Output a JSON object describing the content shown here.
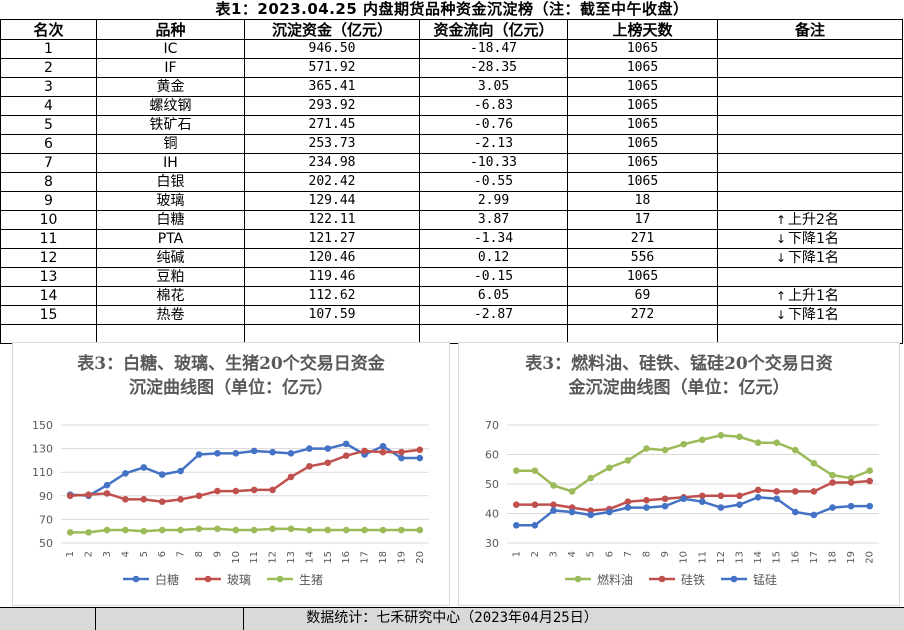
{
  "title": "表1：2023.04.25 内盘期货品种资金沉淀榜（注：截至中午收盘）",
  "table": {
    "headers": [
      "名次",
      "品种",
      "沉淀资金（亿元）",
      "资金流向（亿元）",
      "上榜天数",
      "备注"
    ],
    "rows": [
      {
        "rank": "1",
        "name": "IC",
        "amount": "946.50",
        "flow": "-18.47",
        "days": "1065",
        "note": "",
        "arrow": ""
      },
      {
        "rank": "2",
        "name": "IF",
        "amount": "571.92",
        "flow": "-28.35",
        "days": "1065",
        "note": "",
        "arrow": ""
      },
      {
        "rank": "3",
        "name": "黄金",
        "amount": "365.41",
        "flow": "3.05",
        "days": "1065",
        "note": "",
        "arrow": ""
      },
      {
        "rank": "4",
        "name": "螺纹钢",
        "amount": "293.92",
        "flow": "-6.83",
        "days": "1065",
        "note": "",
        "arrow": ""
      },
      {
        "rank": "5",
        "name": "铁矿石",
        "amount": "271.45",
        "flow": "-0.76",
        "days": "1065",
        "note": "",
        "arrow": ""
      },
      {
        "rank": "6",
        "name": "铜",
        "amount": "253.73",
        "flow": "-2.13",
        "days": "1065",
        "note": "",
        "arrow": ""
      },
      {
        "rank": "7",
        "name": "IH",
        "amount": "234.98",
        "flow": "-10.33",
        "days": "1065",
        "note": "",
        "arrow": ""
      },
      {
        "rank": "8",
        "name": "白银",
        "amount": "202.42",
        "flow": "-0.55",
        "days": "1065",
        "note": "",
        "arrow": ""
      },
      {
        "rank": "9",
        "name": "玻璃",
        "amount": "129.44",
        "flow": "2.99",
        "days": "18",
        "note": "",
        "arrow": ""
      },
      {
        "rank": "10",
        "name": "白糖",
        "amount": "122.11",
        "flow": "3.87",
        "days": "17",
        "note": "上升2名",
        "arrow": "↑"
      },
      {
        "rank": "11",
        "name": "PTA",
        "amount": "121.27",
        "flow": "-1.34",
        "days": "271",
        "note": "下降1名",
        "arrow": "↓"
      },
      {
        "rank": "12",
        "name": "纯碱",
        "amount": "120.46",
        "flow": "0.12",
        "days": "556",
        "note": "下降1名",
        "arrow": "↓"
      },
      {
        "rank": "13",
        "name": "豆粕",
        "amount": "119.46",
        "flow": "-0.15",
        "days": "1065",
        "note": "",
        "arrow": ""
      },
      {
        "rank": "14",
        "name": "棉花",
        "amount": "112.62",
        "flow": "6.05",
        "days": "69",
        "note": "上升1名",
        "arrow": "↑"
      },
      {
        "rank": "15",
        "name": "热卷",
        "amount": "107.59",
        "flow": "-2.87",
        "days": "272",
        "note": "下降1名",
        "arrow": "↓"
      }
    ]
  },
  "chart_data": [
    {
      "type": "line",
      "title": "表3：白糖、玻璃、生猪20个交易日资金沉淀曲线图（单位：亿元）",
      "title_lines": [
        "表3：白糖、玻璃、生猪20个交易日资金",
        "沉淀曲线图（单位：亿元）"
      ],
      "x": [
        "1",
        "2",
        "3",
        "4",
        "5",
        "6",
        "7",
        "8",
        "9",
        "10",
        "11",
        "12",
        "13",
        "14",
        "15",
        "16",
        "17",
        "18",
        "19",
        "20"
      ],
      "ylim": [
        50,
        150
      ],
      "yticks": [
        "50",
        "70",
        "90",
        "110",
        "130",
        "150"
      ],
      "legend_position": "bottom",
      "series": [
        {
          "name": "白糖",
          "color": "#4472c4",
          "values": [
            91,
            90,
            99,
            109,
            114,
            108,
            111,
            125,
            126,
            126,
            128,
            127,
            126,
            130,
            130,
            134,
            125,
            132,
            122,
            122
          ]
        },
        {
          "name": "玻璃",
          "color": "#c0504d",
          "values": [
            90,
            91,
            92,
            87,
            87,
            85,
            87,
            90,
            94,
            94,
            95,
            95,
            106,
            115,
            118,
            124,
            128,
            127,
            127,
            129
          ]
        },
        {
          "name": "生猪",
          "color": "#9bbb59",
          "values": [
            59,
            59,
            61,
            61,
            60,
            61,
            61,
            62,
            62,
            61,
            61,
            62,
            62,
            61,
            61,
            61,
            61,
            61,
            61,
            61
          ]
        }
      ]
    },
    {
      "type": "line",
      "title": "表3：燃料油、硅铁、锰硅20个交易日资金沉淀曲线图（单位：亿元）",
      "title_lines": [
        "表3：燃料油、硅铁、锰硅20个交易日资",
        "金沉淀曲线图（单位：亿元）"
      ],
      "x": [
        "1",
        "2",
        "3",
        "4",
        "5",
        "6",
        "7",
        "8",
        "9",
        "10",
        "11",
        "12",
        "13",
        "14",
        "15",
        "16",
        "17",
        "18",
        "19",
        "20"
      ],
      "ylim": [
        30,
        70
      ],
      "yticks": [
        "30",
        "40",
        "50",
        "60",
        "70"
      ],
      "legend_position": "bottom",
      "series": [
        {
          "name": "燃料油",
          "color": "#9bbb59",
          "values": [
            54.5,
            54.5,
            49.5,
            47.5,
            52,
            55.5,
            58,
            62,
            61.5,
            63.5,
            65,
            66.5,
            66,
            64,
            64,
            61.5,
            57,
            53,
            52,
            54.5
          ]
        },
        {
          "name": "硅铁",
          "color": "#c0504d",
          "values": [
            43,
            43,
            43,
            42,
            41,
            41.5,
            44,
            44.5,
            45,
            45.5,
            46,
            46,
            46,
            48,
            47.5,
            47.5,
            47.5,
            50.5,
            50.5,
            51
          ]
        },
        {
          "name": "锰硅",
          "color": "#4472c4",
          "values": [
            36,
            36,
            41,
            40.5,
            39.5,
            40.5,
            42,
            42,
            42.5,
            45,
            44,
            42,
            43,
            45.5,
            45,
            40.5,
            39.5,
            42,
            42.5,
            42.5
          ]
        }
      ]
    }
  ],
  "footer": "数据统计：七禾研究中心（2023年04月25日）"
}
